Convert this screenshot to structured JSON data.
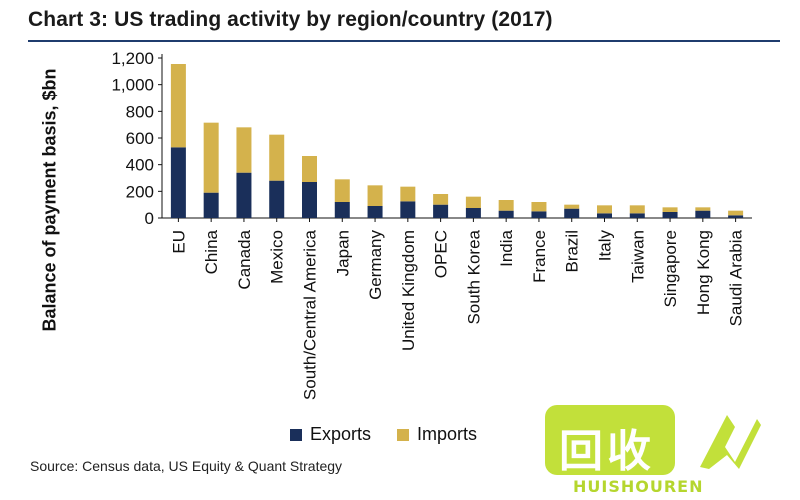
{
  "title": "Chart 3: US trading activity by region/country (2017)",
  "source": "Source: Census data, US Equity & Quant Strategy",
  "watermark": {
    "text": "回收",
    "sub": "HUISHOUREN"
  },
  "colors": {
    "exports": "#1a2f5a",
    "imports": "#d4b24c",
    "rule": "#1f3c6e"
  },
  "chart_data": {
    "type": "bar",
    "stacked": true,
    "ylabel": "Balance of payment basis, $bn",
    "xlabel": "",
    "ylim": [
      0,
      1200
    ],
    "yticks": [
      0,
      200,
      400,
      600,
      800,
      1000,
      1200
    ],
    "ytick_labels": [
      "0",
      "200",
      "400",
      "600",
      "800",
      "1,000",
      "1,200"
    ],
    "categories": [
      "EU",
      "China",
      "Canada",
      "Mexico",
      "South/Central America",
      "Japan",
      "Germany",
      "United Kingdom",
      "OPEC",
      "South Korea",
      "India",
      "France",
      "Brazil",
      "Italy",
      "Taiwan",
      "Singapore",
      "Hong Kong",
      "Saudi Arabia"
    ],
    "series": [
      {
        "name": "Exports",
        "values": [
          530,
          190,
          340,
          280,
          270,
          120,
          90,
          125,
          100,
          75,
          55,
          50,
          70,
          35,
          35,
          45,
          55,
          20
        ]
      },
      {
        "name": "Imports",
        "values": [
          625,
          525,
          340,
          345,
          195,
          170,
          155,
          110,
          80,
          85,
          80,
          70,
          30,
          60,
          60,
          35,
          25,
          35
        ]
      }
    ],
    "legend": "bottom-center",
    "grid": false
  }
}
